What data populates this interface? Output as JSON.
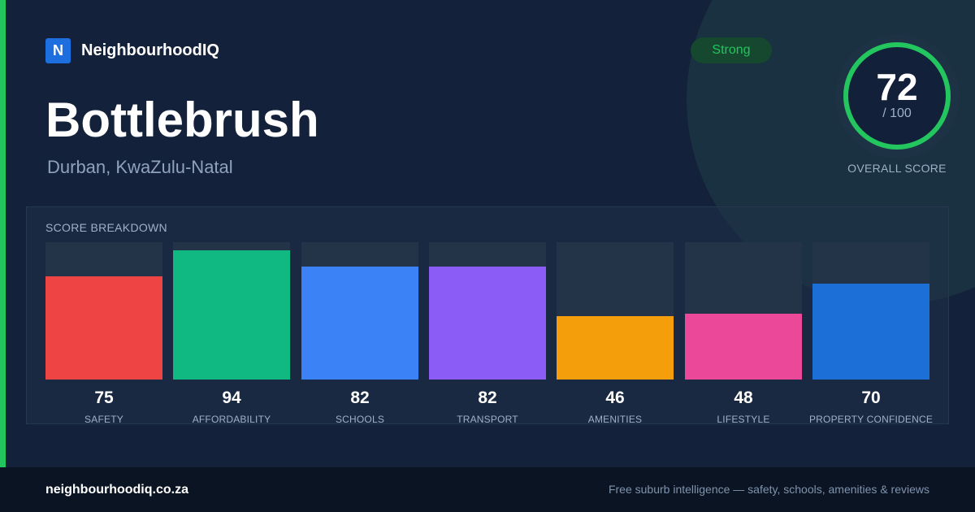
{
  "brand": {
    "logo_letter": "N",
    "name": "NeighbourhoodIQ"
  },
  "suburb": {
    "name": "Bottlebrush",
    "location": "Durban, KwaZulu-Natal"
  },
  "badge": {
    "label": "Strong"
  },
  "overall": {
    "score": "72",
    "max_label": "/ 100",
    "label": "OVERALL SCORE",
    "value": 72,
    "max": 100
  },
  "breakdown": {
    "title": "SCORE BREAKDOWN",
    "items": [
      {
        "value": 75,
        "value_text": "75",
        "label": "SAFETY",
        "color": "#ef4444"
      },
      {
        "value": 94,
        "value_text": "94",
        "label": "AFFORDABILITY",
        "color": "#10b981"
      },
      {
        "value": 82,
        "value_text": "82",
        "label": "SCHOOLS",
        "color": "#3b82f6"
      },
      {
        "value": 82,
        "value_text": "82",
        "label": "TRANSPORT",
        "color": "#8b5cf6"
      },
      {
        "value": 46,
        "value_text": "46",
        "label": "AMENITIES",
        "color": "#f59e0b"
      },
      {
        "value": 48,
        "value_text": "48",
        "label": "LIFESTYLE",
        "color": "#ec4899"
      },
      {
        "value": 70,
        "value_text": "70",
        "label": "PROPERTY CONFIDENCE",
        "color": "#1d6fd8"
      }
    ]
  },
  "footer": {
    "url": "neighbourhoodiq.co.za",
    "tagline": "Free suburb intelligence — safety, schools, amenities & reviews"
  },
  "colors": {
    "accent": "#22c55e",
    "brand_blue": "#1d6fe0"
  }
}
